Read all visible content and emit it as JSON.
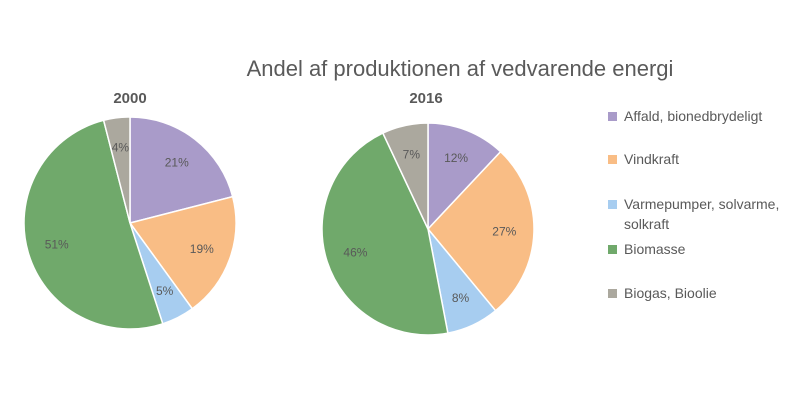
{
  "chart_data": {
    "type": "pie",
    "title": "Andel af produktionen af vedvarende energi",
    "categories": [
      "Affald, bionedbrydeligt",
      "Vindkraft",
      "Varmepumper, solvarme, solkraft",
      "Biomasse",
      "Biogas, Bioolie"
    ],
    "colors": [
      "#a99bc9",
      "#f9bd85",
      "#a7cdf0",
      "#70a96b",
      "#aba89e"
    ],
    "series": [
      {
        "name": "2000",
        "values": [
          21,
          19,
          5,
          51,
          4
        ],
        "labels": [
          "21%",
          "19%",
          "5%",
          "51%",
          "4%"
        ]
      },
      {
        "name": "2016",
        "values": [
          12,
          27,
          8,
          46,
          7
        ],
        "labels": [
          "12%",
          "27%",
          "8%",
          "46%",
          "7%"
        ]
      }
    ],
    "legend": {
      "position": "right",
      "entries": [
        "Affald, bionedbrydeligt",
        "Vindkraft",
        "Varmepumper, solvarme, solkraft",
        "Biomasse",
        "Biogas, Bioolie"
      ]
    }
  }
}
